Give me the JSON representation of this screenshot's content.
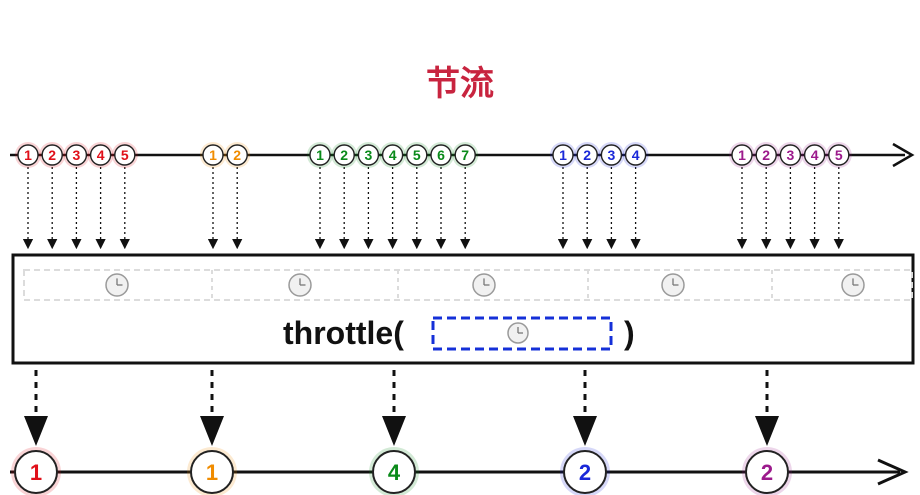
{
  "title": "节流",
  "operator": {
    "name": "throttle(",
    "close": ")"
  },
  "colors": {
    "red": "#e0101a",
    "orange": "#f08c00",
    "green": "#0a8a1a",
    "blue": "#1a28d8",
    "purple": "#9c1a8c",
    "title": "#c8243f",
    "dashbox": "#1530d8"
  },
  "input_groups": [
    {
      "color": "red",
      "labels": [
        "1",
        "2",
        "3",
        "4",
        "5"
      ]
    },
    {
      "color": "orange",
      "labels": [
        "1",
        "2"
      ]
    },
    {
      "color": "green",
      "labels": [
        "1",
        "2",
        "3",
        "4",
        "5",
        "6",
        "7"
      ]
    },
    {
      "color": "blue",
      "labels": [
        "1",
        "2",
        "3",
        "4"
      ]
    },
    {
      "color": "purple",
      "labels": [
        "1",
        "2",
        "3",
        "4",
        "5"
      ]
    }
  ],
  "output_marbles": [
    {
      "color": "red",
      "label": "1"
    },
    {
      "color": "orange",
      "label": "1"
    },
    {
      "color": "green",
      "label": "4"
    },
    {
      "color": "blue",
      "label": "2"
    },
    {
      "color": "purple",
      "label": "2"
    }
  ],
  "timer_icon": "clock-icon"
}
